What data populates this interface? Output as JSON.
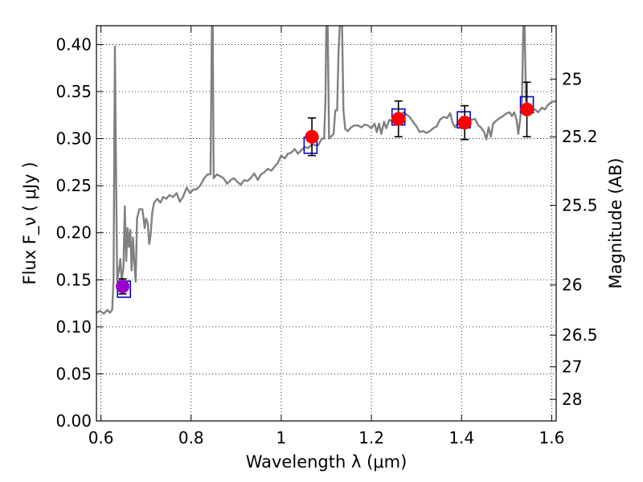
{
  "chart_data": {
    "type": "scatter",
    "title": "",
    "xlabel": "Wavelength  λ (μm)",
    "ylabel": "Flux  F_ν ( μJy )",
    "y2label": "Magnitude (AB)",
    "xlim": [
      0.59,
      1.61
    ],
    "ylim": [
      0.0,
      0.42
    ],
    "grid": true,
    "legend": "none",
    "x_ticks": [
      0.6,
      0.8,
      1.0,
      1.2,
      1.4,
      1.6
    ],
    "x_tick_labels": [
      "0.6",
      "0.8",
      "1",
      "1.2",
      "1.4",
      "1.6"
    ],
    "y_ticks": [
      0.0,
      0.05,
      0.1,
      0.15,
      0.2,
      0.25,
      0.3,
      0.35,
      0.4
    ],
    "y_tick_labels": [
      "0.00",
      "0.05",
      "0.10",
      "0.15",
      "0.20",
      "0.25",
      "0.30",
      "0.35",
      "0.40"
    ],
    "y2_ticks": [
      {
        "label": "25",
        "flux": 0.3631
      },
      {
        "label": "25.2",
        "flux": 0.302
      },
      {
        "label": "25.5",
        "flux": 0.2291
      },
      {
        "label": "26",
        "flux": 0.1445
      },
      {
        "label": "26.5",
        "flux": 0.0912
      },
      {
        "label": "27",
        "flux": 0.0575
      },
      {
        "label": "28",
        "flux": 0.0229
      }
    ],
    "model_spectrum": {
      "color": "#808080",
      "points": [
        [
          0.59,
          0.115
        ],
        [
          0.598,
          0.117
        ],
        [
          0.606,
          0.114
        ],
        [
          0.614,
          0.118
        ],
        [
          0.62,
          0.115
        ],
        [
          0.625,
          0.118
        ],
        [
          0.628,
          0.15
        ],
        [
          0.63,
          0.32
        ],
        [
          0.631,
          0.398
        ],
        [
          0.633,
          0.29
        ],
        [
          0.636,
          0.15
        ],
        [
          0.64,
          0.16
        ],
        [
          0.643,
          0.172
        ],
        [
          0.646,
          0.15
        ],
        [
          0.65,
          0.163
        ],
        [
          0.653,
          0.228
        ],
        [
          0.656,
          0.17
        ],
        [
          0.659,
          0.205
        ],
        [
          0.662,
          0.185
        ],
        [
          0.665,
          0.203
        ],
        [
          0.668,
          0.16
        ],
        [
          0.671,
          0.195
        ],
        [
          0.674,
          0.168
        ],
        [
          0.677,
          0.148
        ],
        [
          0.68,
          0.215
        ],
        [
          0.685,
          0.225
        ],
        [
          0.692,
          0.225
        ],
        [
          0.697,
          0.205
        ],
        [
          0.7,
          0.215
        ],
        [
          0.704,
          0.21
        ],
        [
          0.707,
          0.188
        ],
        [
          0.71,
          0.197
        ],
        [
          0.714,
          0.222
        ],
        [
          0.718,
          0.232
        ],
        [
          0.725,
          0.236
        ],
        [
          0.732,
          0.232
        ],
        [
          0.738,
          0.238
        ],
        [
          0.745,
          0.236
        ],
        [
          0.752,
          0.24
        ],
        [
          0.76,
          0.238
        ],
        [
          0.768,
          0.242
        ],
        [
          0.775,
          0.233
        ],
        [
          0.782,
          0.238
        ],
        [
          0.79,
          0.248
        ],
        [
          0.798,
          0.242
        ],
        [
          0.805,
          0.246
        ],
        [
          0.812,
          0.246
        ],
        [
          0.82,
          0.25
        ],
        [
          0.828,
          0.257
        ],
        [
          0.836,
          0.262
        ],
        [
          0.843,
          0.262
        ],
        [
          0.846,
          0.42
        ],
        [
          0.848,
          0.42
        ],
        [
          0.85,
          0.258
        ],
        [
          0.857,
          0.262
        ],
        [
          0.865,
          0.26
        ],
        [
          0.872,
          0.258
        ],
        [
          0.88,
          0.252
        ],
        [
          0.888,
          0.256
        ],
        [
          0.895,
          0.258
        ],
        [
          0.903,
          0.254
        ],
        [
          0.91,
          0.251
        ],
        [
          0.918,
          0.256
        ],
        [
          0.925,
          0.255
        ],
        [
          0.932,
          0.258
        ],
        [
          0.94,
          0.263
        ],
        [
          0.948,
          0.256
        ],
        [
          0.955,
          0.262
        ],
        [
          0.962,
          0.264
        ],
        [
          0.97,
          0.268
        ],
        [
          0.978,
          0.266
        ],
        [
          0.985,
          0.27
        ],
        [
          0.992,
          0.274
        ],
        [
          1.0,
          0.282
        ],
        [
          1.008,
          0.279
        ],
        [
          1.015,
          0.284
        ],
        [
          1.022,
          0.285
        ],
        [
          1.03,
          0.289
        ],
        [
          1.037,
          0.284
        ],
        [
          1.045,
          0.288
        ],
        [
          1.052,
          0.291
        ],
        [
          1.06,
          0.29
        ],
        [
          1.068,
          0.294
        ],
        [
          1.075,
          0.293
        ],
        [
          1.082,
          0.293
        ],
        [
          1.09,
          0.3
        ],
        [
          1.095,
          0.3
        ],
        [
          1.098,
          0.34
        ],
        [
          1.1,
          0.42
        ],
        [
          1.103,
          0.42
        ],
        [
          1.106,
          0.3
        ],
        [
          1.112,
          0.303
        ],
        [
          1.116,
          0.305
        ],
        [
          1.12,
          0.33
        ],
        [
          1.124,
          0.33
        ],
        [
          1.127,
          0.39
        ],
        [
          1.13,
          0.42
        ],
        [
          1.135,
          0.42
        ],
        [
          1.138,
          0.33
        ],
        [
          1.142,
          0.31
        ],
        [
          1.148,
          0.308
        ],
        [
          1.155,
          0.312
        ],
        [
          1.162,
          0.314
        ],
        [
          1.17,
          0.314
        ],
        [
          1.178,
          0.312
        ],
        [
          1.185,
          0.315
        ],
        [
          1.192,
          0.314
        ],
        [
          1.2,
          0.311
        ],
        [
          1.207,
          0.316
        ],
        [
          1.212,
          0.307
        ],
        [
          1.217,
          0.316
        ],
        [
          1.222,
          0.305
        ],
        [
          1.228,
          0.318
        ],
        [
          1.233,
          0.311
        ],
        [
          1.24,
          0.32
        ],
        [
          1.247,
          0.318
        ],
        [
          1.255,
          0.324
        ],
        [
          1.262,
          0.32
        ],
        [
          1.27,
          0.328
        ],
        [
          1.277,
          0.326
        ],
        [
          1.285,
          0.323
        ],
        [
          1.292,
          0.318
        ],
        [
          1.3,
          0.313
        ],
        [
          1.307,
          0.307
        ],
        [
          1.315,
          0.308
        ],
        [
          1.322,
          0.306
        ],
        [
          1.33,
          0.308
        ],
        [
          1.337,
          0.311
        ],
        [
          1.345,
          0.313
        ],
        [
          1.352,
          0.32
        ],
        [
          1.36,
          0.323
        ],
        [
          1.368,
          0.322
        ],
        [
          1.375,
          0.327
        ],
        [
          1.38,
          0.317
        ],
        [
          1.386,
          0.312
        ],
        [
          1.392,
          0.317
        ],
        [
          1.4,
          0.322
        ],
        [
          1.407,
          0.32
        ],
        [
          1.415,
          0.322
        ],
        [
          1.422,
          0.32
        ],
        [
          1.43,
          0.321
        ],
        [
          1.437,
          0.314
        ],
        [
          1.443,
          0.312
        ],
        [
          1.45,
          0.307
        ],
        [
          1.455,
          0.299
        ],
        [
          1.46,
          0.312
        ],
        [
          1.465,
          0.302
        ],
        [
          1.47,
          0.316
        ],
        [
          1.477,
          0.319
        ],
        [
          1.485,
          0.322
        ],
        [
          1.492,
          0.324
        ],
        [
          1.5,
          0.327
        ],
        [
          1.507,
          0.328
        ],
        [
          1.512,
          0.324
        ],
        [
          1.517,
          0.328
        ],
        [
          1.522,
          0.32
        ],
        [
          1.526,
          0.305
        ],
        [
          1.53,
          0.32
        ],
        [
          1.534,
          0.34
        ],
        [
          1.537,
          0.42
        ],
        [
          1.54,
          0.42
        ],
        [
          1.543,
          0.34
        ],
        [
          1.548,
          0.33
        ],
        [
          1.555,
          0.332
        ],
        [
          1.563,
          0.331
        ],
        [
          1.57,
          0.328
        ],
        [
          1.578,
          0.333
        ],
        [
          1.585,
          0.331
        ],
        [
          1.592,
          0.336
        ],
        [
          1.6,
          0.339
        ],
        [
          1.61,
          0.34
        ]
      ]
    },
    "model_bands": [
      {
        "x": 0.651,
        "y": 0.14
      },
      {
        "x": 1.065,
        "y": 0.293
      },
      {
        "x": 1.26,
        "y": 0.323
      },
      {
        "x": 1.405,
        "y": 0.32
      },
      {
        "x": 1.545,
        "y": 0.336
      }
    ],
    "observed": [
      {
        "x": 0.648,
        "y": 0.143,
        "err": 0.008,
        "color": "#9900cc"
      },
      {
        "x": 1.068,
        "y": 0.302,
        "err": 0.02,
        "color": "#ff0000"
      },
      {
        "x": 1.26,
        "y": 0.321,
        "err": 0.019,
        "color": "#ff0000"
      },
      {
        "x": 1.407,
        "y": 0.317,
        "err": 0.018,
        "color": "#ff0000"
      },
      {
        "x": 1.545,
        "y": 0.331,
        "err": 0.029,
        "color": "#ff0000"
      }
    ]
  }
}
